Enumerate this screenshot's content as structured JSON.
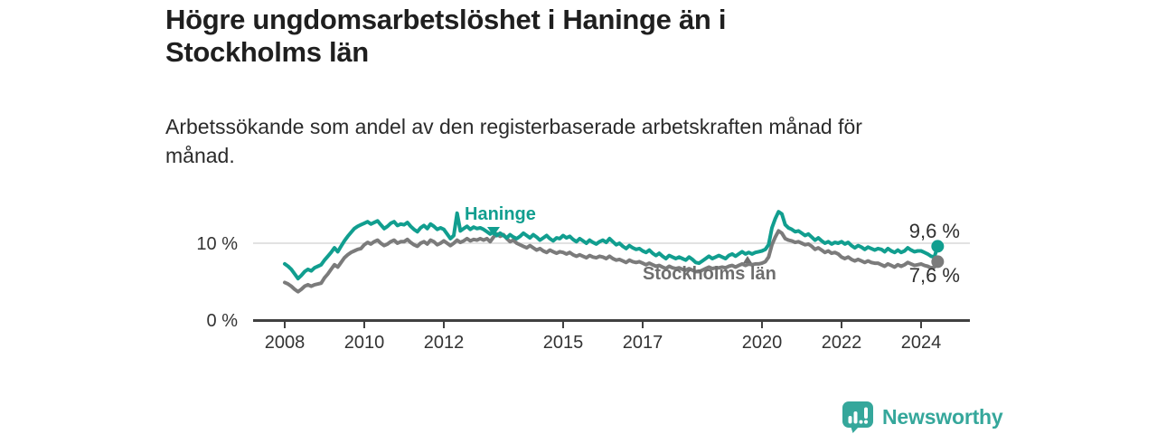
{
  "header": {
    "title_line1": "Högre ungdomsarbetslöshet i Haninge än i",
    "title_line2": "Stockholms län",
    "subtitle_line1": "Arbetssökande som andel av den registerbaserade arbetskraften månad för",
    "subtitle_line2": "månad."
  },
  "footer": {
    "brand": "Newsworthy"
  },
  "colors": {
    "haninge": "#119e8f",
    "stockholms_lan": "#7b7b7b",
    "label_gray": "#6e6e6e",
    "axis": "#404040",
    "grid": "#d9d9d9",
    "tick_text": "#333333",
    "title_text": "#1f1f1f",
    "logo": "#35a79b"
  },
  "chart_data": {
    "type": "line",
    "title": "Högre ungdomsarbetslöshet i Haninge än i Stockholms län",
    "subtitle": "Arbetssökande som andel av den registerbaserade arbetskraften månad för månad.",
    "x_unit": "year-month",
    "x_start_year": 2008,
    "x_step_months": 1,
    "ylim": [
      0,
      15
    ],
    "grid": "horizontal-10-only",
    "y_ticks": [
      {
        "value": 0,
        "label": "0 %"
      },
      {
        "value": 10,
        "label": "10 %"
      }
    ],
    "x_ticks": [
      {
        "year": 2008,
        "label": "2008"
      },
      {
        "year": 2010,
        "label": "2010"
      },
      {
        "year": 2012,
        "label": "2012"
      },
      {
        "year": 2015,
        "label": "2015"
      },
      {
        "year": 2017,
        "label": "2017"
      },
      {
        "year": 2020,
        "label": "2020"
      },
      {
        "year": 2022,
        "label": "2022"
      },
      {
        "year": 2024,
        "label": "2024"
      }
    ],
    "series": [
      {
        "name": "Haninge",
        "color": "#119e8f",
        "end_label": "9,6 %",
        "end_value": 9.6,
        "values": [
          7.3,
          7.0,
          6.6,
          6.0,
          5.4,
          5.8,
          6.3,
          6.6,
          6.4,
          6.8,
          7.0,
          7.2,
          7.8,
          8.3,
          8.8,
          9.4,
          8.9,
          9.6,
          10.3,
          10.9,
          11.4,
          11.9,
          12.2,
          12.4,
          12.6,
          12.8,
          12.5,
          12.7,
          12.9,
          12.4,
          11.9,
          12.2,
          12.6,
          12.8,
          12.3,
          12.5,
          12.4,
          12.7,
          12.2,
          11.8,
          11.5,
          12.0,
          12.3,
          11.9,
          12.5,
          12.2,
          11.8,
          12.0,
          11.8,
          11.2,
          10.6,
          11.0,
          13.9,
          11.6,
          11.9,
          12.2,
          11.8,
          12.1,
          11.9,
          12.0,
          11.8,
          11.5,
          11.2,
          11.5,
          11.0,
          11.3,
          11.0,
          10.7,
          11.1,
          10.8,
          10.6,
          10.9,
          11.3,
          11.0,
          10.7,
          11.1,
          10.8,
          10.4,
          10.7,
          11.0,
          10.6,
          10.3,
          10.7,
          10.6,
          11.0,
          10.7,
          10.9,
          10.5,
          10.2,
          10.6,
          10.3,
          10.0,
          10.4,
          10.1,
          9.9,
          10.2,
          10.4,
          10.1,
          10.6,
          10.2,
          9.8,
          10.0,
          9.6,
          9.3,
          9.7,
          9.4,
          9.2,
          9.3,
          9.0,
          8.8,
          9.1,
          8.7,
          8.4,
          8.7,
          8.3,
          8.0,
          8.4,
          8.2,
          8.0,
          8.2,
          8.0,
          7.8,
          8.2,
          7.9,
          7.5,
          7.4,
          7.7,
          8.0,
          8.3,
          8.0,
          8.2,
          8.4,
          8.2,
          8.0,
          8.4,
          8.6,
          8.3,
          8.6,
          8.9,
          8.6,
          8.8,
          8.6,
          8.8,
          8.9,
          9.0,
          9.2,
          9.8,
          12.0,
          13.2,
          14.1,
          13.8,
          12.4,
          12.0,
          11.8,
          11.5,
          11.6,
          11.3,
          11.0,
          11.2,
          10.8,
          10.4,
          10.7,
          10.3,
          10.0,
          10.2,
          9.9,
          10.1,
          10.0,
          10.2,
          9.9,
          10.1,
          9.7,
          9.4,
          9.7,
          9.5,
          9.2,
          9.5,
          9.3,
          9.1,
          9.3,
          9.2,
          8.9,
          9.3,
          9.0,
          8.8,
          9.1,
          8.8,
          9.0,
          9.4,
          9.1,
          8.9,
          9.0,
          9.0,
          8.8,
          8.6,
          8.3,
          8.2,
          9.6
        ]
      },
      {
        "name": "Stockholms län",
        "color": "#7b7b7b",
        "end_label": "7,6 %",
        "end_value": 7.6,
        "values": [
          4.9,
          4.7,
          4.4,
          4.0,
          3.7,
          4.0,
          4.4,
          4.6,
          4.4,
          4.6,
          4.7,
          4.8,
          5.5,
          6.0,
          6.6,
          7.2,
          6.9,
          7.5,
          8.1,
          8.5,
          8.8,
          9.0,
          9.2,
          9.3,
          9.8,
          10.1,
          9.9,
          10.2,
          10.4,
          10.0,
          9.7,
          9.9,
          10.2,
          10.4,
          10.0,
          10.2,
          10.2,
          10.5,
          10.1,
          9.8,
          9.6,
          10.0,
          10.2,
          9.9,
          10.4,
          10.2,
          9.8,
          10.0,
          10.3,
          10.0,
          9.7,
          10.0,
          10.4,
          10.1,
          10.3,
          10.6,
          10.3,
          10.5,
          10.4,
          10.6,
          10.4,
          10.6,
          10.2,
          10.8,
          11.2,
          10.9,
          11.1,
          10.6,
          10.2,
          10.4,
          10.0,
          9.8,
          9.6,
          9.4,
          9.7,
          9.4,
          9.1,
          9.3,
          9.0,
          8.8,
          9.1,
          8.9,
          8.7,
          8.9,
          8.8,
          8.6,
          8.8,
          8.5,
          8.3,
          8.5,
          8.3,
          8.1,
          8.4,
          8.2,
          8.1,
          8.3,
          8.2,
          8.0,
          8.3,
          8.0,
          7.8,
          7.9,
          7.7,
          7.5,
          7.8,
          7.6,
          7.5,
          7.6,
          7.4,
          7.2,
          7.4,
          7.2,
          7.0,
          7.1,
          6.9,
          6.7,
          7.0,
          6.8,
          6.7,
          6.8,
          6.6,
          6.5,
          6.7,
          6.5,
          6.3,
          6.3,
          6.5,
          6.7,
          6.9,
          6.7,
          6.8,
          6.8,
          6.9,
          6.8,
          7.0,
          7.1,
          6.9,
          7.1,
          7.3,
          7.1,
          7.3,
          7.2,
          7.3,
          7.3,
          7.4,
          7.6,
          8.2,
          9.8,
          10.8,
          11.6,
          11.3,
          10.6,
          10.4,
          10.3,
          10.1,
          10.2,
          10.0,
          9.8,
          9.9,
          9.6,
          9.2,
          9.4,
          9.1,
          8.8,
          9.0,
          8.7,
          8.8,
          8.6,
          8.2,
          8.0,
          8.2,
          7.9,
          7.7,
          7.9,
          7.7,
          7.5,
          7.7,
          7.5,
          7.4,
          7.4,
          7.2,
          7.0,
          7.3,
          7.1,
          6.9,
          7.2,
          7.0,
          7.2,
          7.5,
          7.3,
          7.1,
          7.2,
          7.3,
          7.1,
          7.0,
          6.8,
          6.9,
          7.6
        ]
      }
    ],
    "legend_position": "inline-annotations"
  }
}
